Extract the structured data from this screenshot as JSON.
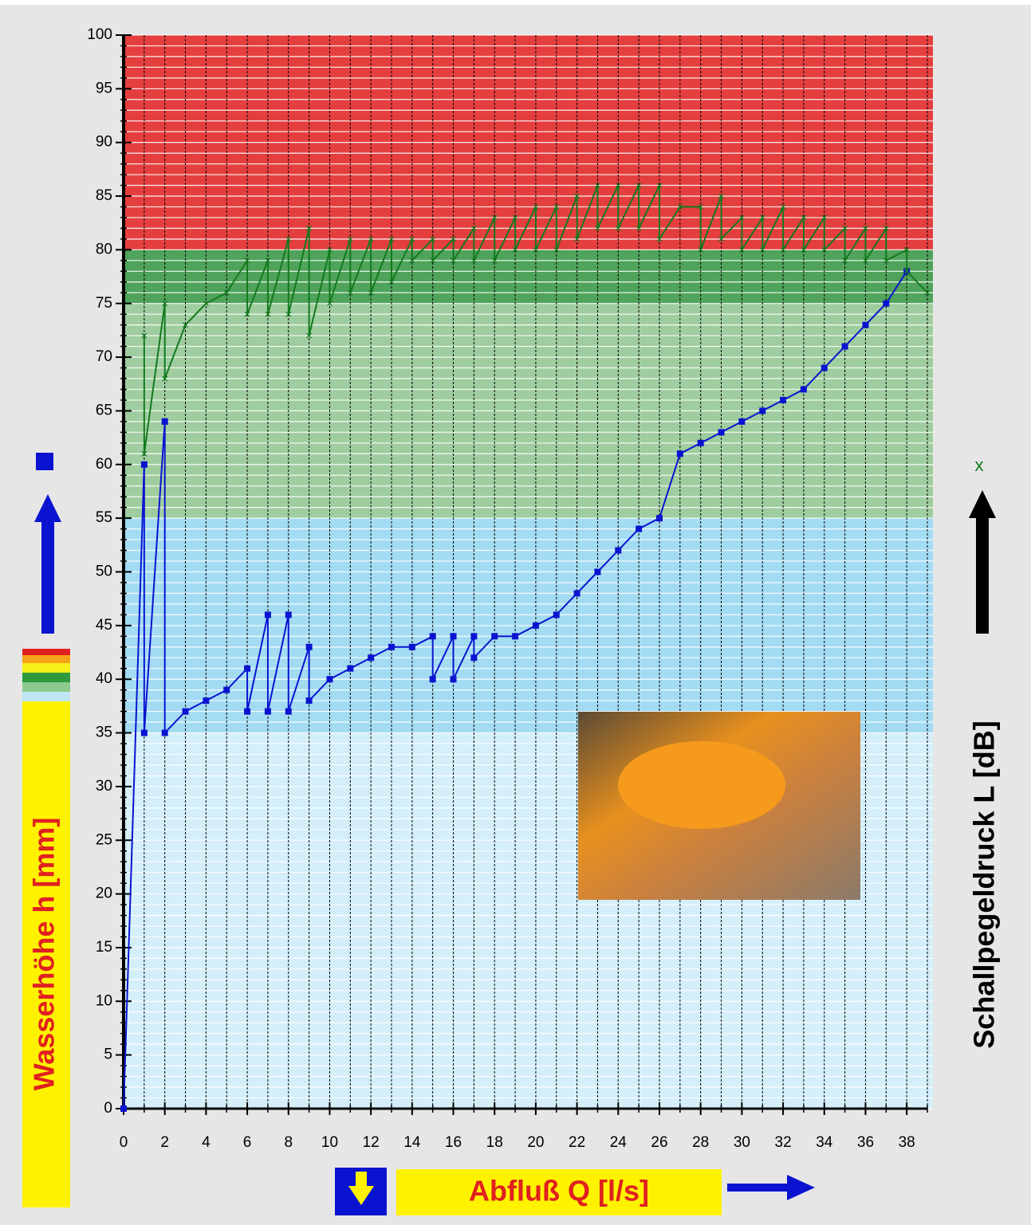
{
  "chart_data": {
    "type": "line",
    "xlabel": "Abfluß Q [l/s]",
    "ylabel": "Wasserhöhe h [mm]",
    "y2label": "Schallpegeldruck L [dB]",
    "xlim": [
      0,
      39
    ],
    "ylim": [
      0,
      100
    ],
    "xticks": [
      0,
      2,
      4,
      6,
      8,
      10,
      12,
      14,
      16,
      18,
      20,
      22,
      24,
      26,
      28,
      30,
      32,
      34,
      36,
      38
    ],
    "yticks": [
      0,
      5,
      10,
      15,
      20,
      25,
      30,
      35,
      40,
      45,
      50,
      55,
      60,
      65,
      70,
      75,
      80,
      85,
      90,
      95,
      100
    ],
    "xminor": 1,
    "yminor": 1,
    "grid": true,
    "bands": [
      {
        "from": 80,
        "to": 100,
        "color": "#e53e3e"
      },
      {
        "from": 75,
        "to": 80,
        "color": "#4fa35a"
      },
      {
        "from": 55,
        "to": 75,
        "color": "#9fcd9f"
      },
      {
        "from": 35,
        "to": 55,
        "color": "#a3dbf3"
      },
      {
        "from": 0,
        "to": 35,
        "color": "#d4effa"
      }
    ],
    "series": [
      {
        "color": "#0a14d0",
        "marker": "square",
        "x": [
          0,
          1,
          1,
          2,
          2,
          3,
          4,
          5,
          6,
          6,
          7,
          7,
          8,
          8,
          9,
          9,
          10,
          11,
          12,
          13,
          14,
          15,
          15,
          16,
          16,
          17,
          17,
          18,
          19,
          20,
          21,
          22,
          23,
          24,
          25,
          26,
          27,
          28,
          29,
          30,
          31,
          32,
          33,
          34,
          35,
          36,
          37,
          38
        ],
        "values": [
          0,
          60,
          35,
          64,
          35,
          37,
          38,
          39,
          41,
          37,
          46,
          37,
          46,
          37,
          43,
          38,
          40,
          41,
          42,
          43,
          43,
          44,
          40,
          44,
          40,
          44,
          42,
          44,
          44,
          45,
          46,
          48,
          50,
          52,
          54,
          55,
          61,
          62,
          63,
          64,
          65,
          66,
          67,
          69,
          71,
          73,
          75,
          78
        ]
      },
      {
        "color": "#137a1e",
        "marker": "x",
        "x": [
          1,
          1,
          2,
          2,
          3,
          4,
          5,
          6,
          6,
          7,
          7,
          8,
          8,
          9,
          9,
          10,
          10,
          11,
          11,
          12,
          12,
          13,
          13,
          14,
          14,
          15,
          15,
          16,
          16,
          17,
          17,
          18,
          18,
          19,
          19,
          20,
          20,
          21,
          21,
          22,
          22,
          23,
          23,
          24,
          24,
          25,
          25,
          26,
          26,
          27,
          28,
          28,
          29,
          29,
          30,
          30,
          31,
          31,
          32,
          32,
          33,
          33,
          34,
          34,
          35,
          35,
          36,
          36,
          37,
          37,
          38,
          38,
          39
        ],
        "values": [
          72,
          61,
          75,
          68,
          73,
          75,
          76,
          79,
          74,
          79,
          74,
          81,
          74,
          82,
          72,
          80,
          75,
          81,
          76,
          81,
          76,
          81,
          77,
          81,
          79,
          81,
          79,
          81,
          79,
          82,
          79,
          83,
          79,
          83,
          80,
          84,
          80,
          84,
          80,
          85,
          81,
          86,
          82,
          86,
          82,
          86,
          82,
          86,
          81,
          84,
          84,
          80,
          85,
          81,
          83,
          80,
          83,
          80,
          84,
          80,
          83,
          80,
          83,
          80,
          82,
          79,
          82,
          79,
          82,
          79,
          80,
          78,
          76
        ]
      }
    ]
  }
}
